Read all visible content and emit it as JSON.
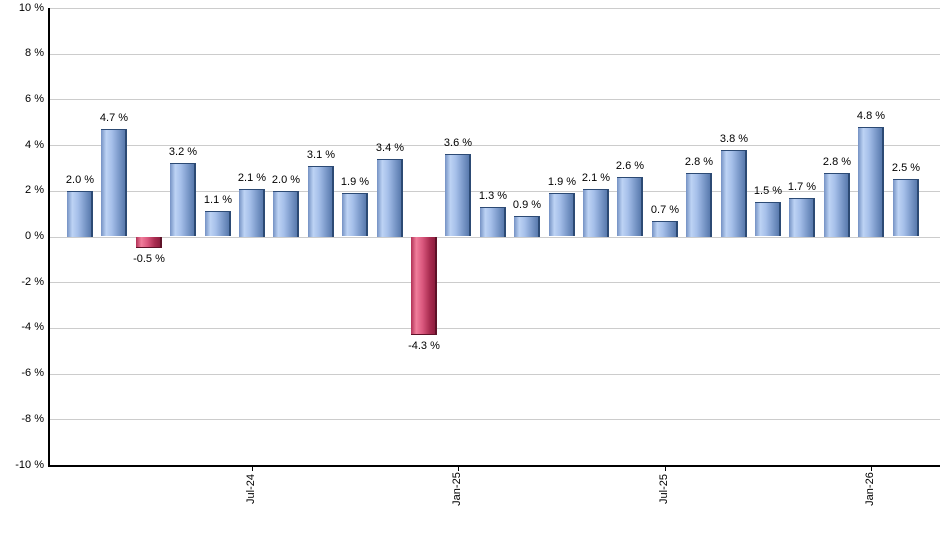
{
  "chart_data": {
    "type": "bar",
    "title": "",
    "xlabel": "",
    "ylabel": "",
    "unit": "%",
    "ylim": [
      -10,
      10
    ],
    "y_tick_step": 2,
    "grid": true,
    "legend": "none",
    "values": [
      2.0,
      4.7,
      -0.5,
      3.2,
      1.1,
      2.1,
      2.0,
      3.1,
      1.9,
      3.4,
      -4.3,
      3.6,
      1.3,
      0.9,
      1.9,
      2.1,
      2.6,
      0.7,
      2.8,
      3.8,
      1.5,
      1.7,
      2.8,
      4.8,
      2.5
    ],
    "bar_value_labels": [
      "2.0 %",
      "4.7 %",
      "-0.5 %",
      "3.2 %",
      "1.1 %",
      "2.1 %",
      "2.0 %",
      "3.1 %",
      "1.9 %",
      "3.4 %",
      "-4.3 %",
      "3.6 %",
      "1.3 %",
      "0.9 %",
      "1.9 %",
      "2.1 %",
      "2.6 %",
      "0.7 %",
      "2.8 %",
      "3.8 %",
      "1.5 %",
      "1.7 %",
      "2.8 %",
      "4.8 %",
      "2.5 %"
    ],
    "y_tick_labels": [
      "10 %",
      "8 %",
      "6 %",
      "4 %",
      "2 %",
      "0 %",
      "-2 %",
      "-4 %",
      "-6 %",
      "-8 %",
      "-10 %"
    ],
    "x_ticks": [
      {
        "index": 5,
        "label": "Jul-24"
      },
      {
        "index": 11,
        "label": "Jan-25"
      },
      {
        "index": 17,
        "label": "Jul-25"
      },
      {
        "index": 23,
        "label": "Jan-26"
      }
    ],
    "colors": {
      "background": "#ffffff",
      "gridline": "#cccccc",
      "axis": "#000000",
      "text": "#000000",
      "positive_gradient": [
        "#7491c3",
        "#bdd3f4",
        "#a6c0ea",
        "#7f9dcd",
        "#597aad"
      ],
      "positive_edge": "#2c4a74",
      "negative_gradient": [
        "#b13055",
        "#f07e9b",
        "#da587e",
        "#a92c50",
        "#8e1e3f"
      ],
      "negative_edge": "#5e1228"
    }
  }
}
